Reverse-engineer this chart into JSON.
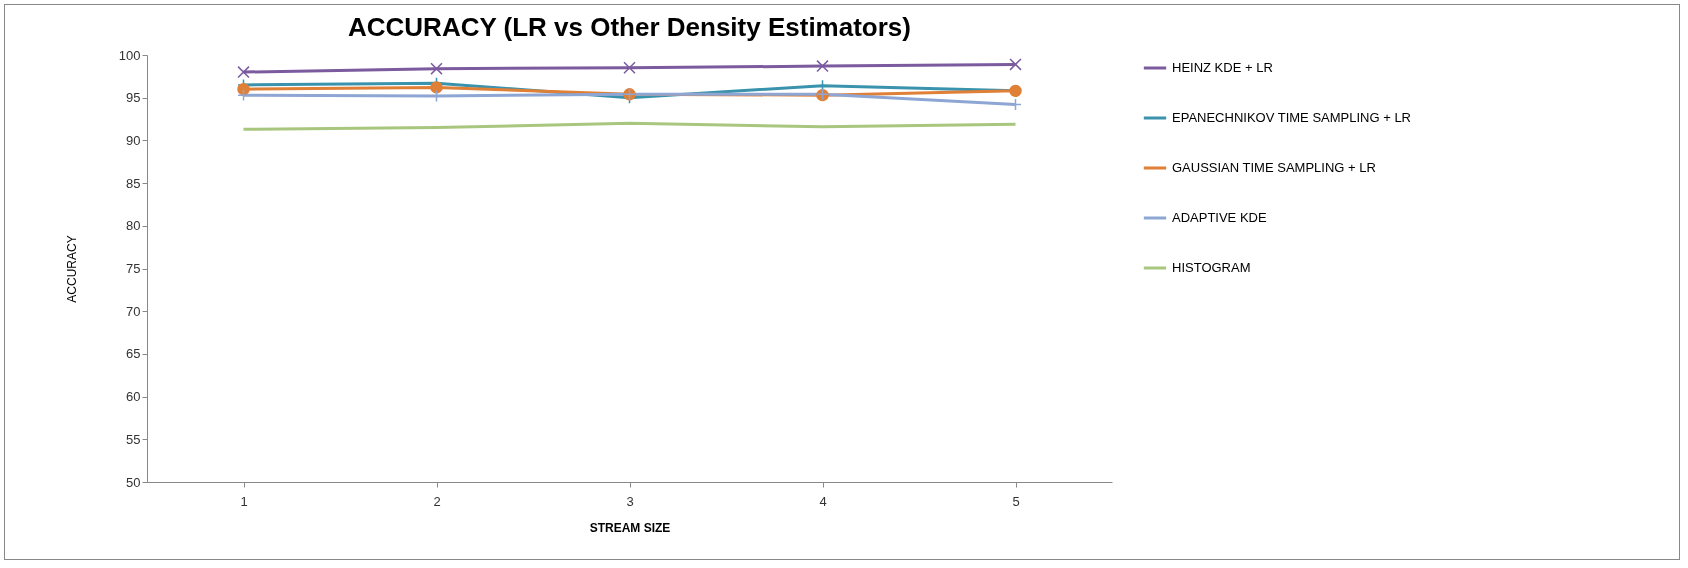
{
  "chart_data": {
    "type": "line",
    "title": "ACCURACY (LR vs Other Density Estimators)",
    "xlabel": "STREAM SIZE",
    "ylabel": "ACCURACY",
    "categories": [
      "1",
      "2",
      "3",
      "4",
      "5"
    ],
    "series": [
      {
        "name": "HEINZ KDE + LR",
        "color": "#7b5a9e",
        "marker": "x",
        "values": [
          98.0,
          98.4,
          98.5,
          98.7,
          98.9
        ]
      },
      {
        "name": "EPANECHNIKOV TIME SAMPLING + LR",
        "color": "#3a93ad",
        "marker": "cross",
        "values": [
          96.5,
          96.7,
          95.0,
          96.4,
          95.8
        ]
      },
      {
        "name": "GAUSSIAN TIME SAMPLING + LR",
        "color": "#e07f36",
        "marker": "circle",
        "values": [
          96.0,
          96.2,
          95.4,
          95.3,
          95.8
        ]
      },
      {
        "name": "ADAPTIVE KDE",
        "color": "#8ea6d3",
        "marker": "cross",
        "values": [
          95.3,
          95.2,
          95.4,
          95.4,
          94.2
        ]
      },
      {
        "name": "HISTOGRAM",
        "color": "#a8c67e",
        "marker": "none",
        "values": [
          91.3,
          91.5,
          92.0,
          91.6,
          91.9
        ]
      }
    ],
    "ylim": [
      50,
      100
    ],
    "yticks": [
      50,
      55,
      60,
      65,
      70,
      75,
      80,
      85,
      90,
      95,
      100
    ],
    "legend": "right"
  }
}
